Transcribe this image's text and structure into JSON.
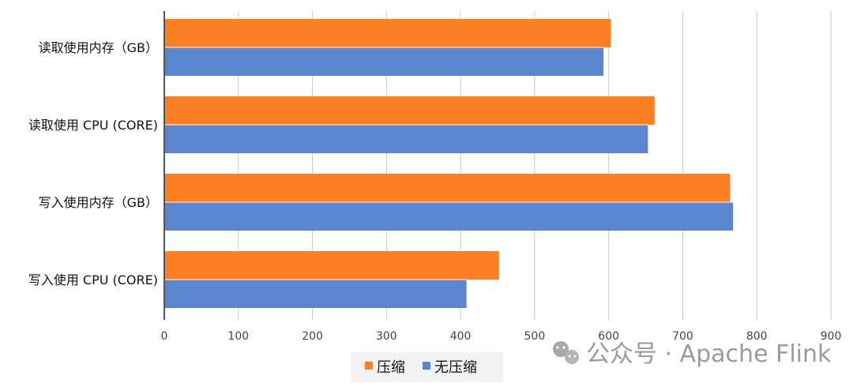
{
  "chart_data": {
    "type": "bar",
    "orientation": "horizontal",
    "categories": [
      "读取使用内存（GB）",
      "读取使用 CPU (CORE)",
      "写入使用内存（GB）",
      "写入使用 CPU (CORE)"
    ],
    "series": [
      {
        "name": "压缩",
        "color": "#fd7f23",
        "values": [
          603,
          662,
          764,
          452
        ]
      },
      {
        "name": "无压缩",
        "color": "#5a86cf",
        "values": [
          593,
          653,
          768,
          408
        ]
      }
    ],
    "xlim": [
      0,
      900
    ],
    "xticks": [
      0,
      100,
      200,
      300,
      400,
      500,
      600,
      700,
      800,
      900
    ],
    "grid": "vertical",
    "legend": "bottom-center"
  },
  "watermark": {
    "text": "公众号 · Apache Flink",
    "icon": "wechat-icon"
  }
}
